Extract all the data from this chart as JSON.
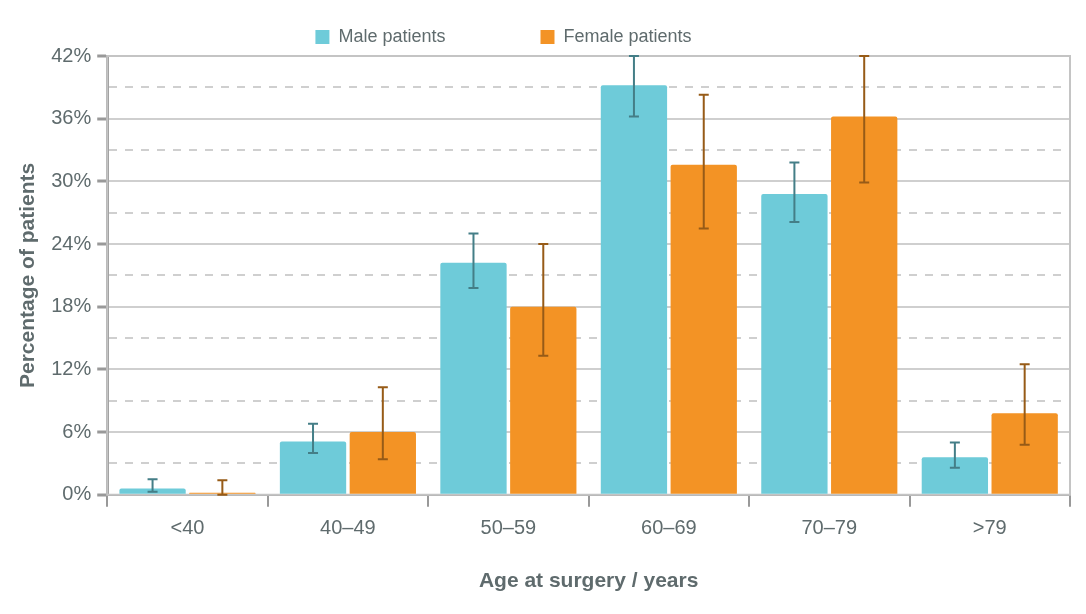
{
  "chart_data": {
    "type": "bar",
    "xlabel": "Age at surgery / years",
    "ylabel": "Percentage of patients",
    "categories": [
      "<40",
      "40–49",
      "50–59",
      "60–69",
      "70–79",
      ">79"
    ],
    "series": [
      {
        "name": "Male patients",
        "color": "#6ecbd9",
        "values": [
          0.6,
          5.1,
          22.2,
          39.2,
          28.8,
          3.6
        ],
        "errors": [
          [
            0.3,
            1.5
          ],
          [
            4.0,
            6.8
          ],
          [
            19.8,
            25.0
          ],
          [
            36.2,
            42
          ],
          [
            26.1,
            31.8
          ],
          [
            2.6,
            5.0
          ]
        ]
      },
      {
        "name": "Female patients",
        "color": "#f39325",
        "values": [
          0,
          6.0,
          18.0,
          31.6,
          36.2,
          7.8
        ],
        "errors": [
          [
            0,
            1.4
          ],
          [
            3.4,
            10.3
          ],
          [
            13.3,
            24.0
          ],
          [
            25.5,
            38.3
          ],
          [
            29.9,
            42
          ],
          [
            4.8,
            12.5
          ]
        ]
      }
    ],
    "ylim": [
      0,
      42
    ],
    "yticks": [
      {
        "value": 0,
        "label": "0%"
      },
      {
        "value": 3,
        "label": null
      },
      {
        "value": 6,
        "label": "6%"
      },
      {
        "value": 9,
        "label": null
      },
      {
        "value": 12,
        "label": "12%"
      },
      {
        "value": 15,
        "label": null
      },
      {
        "value": 18,
        "label": "18%"
      },
      {
        "value": 21,
        "label": null
      },
      {
        "value": 24,
        "label": "24%"
      },
      {
        "value": 27,
        "label": null
      },
      {
        "value": 30,
        "label": "30%"
      },
      {
        "value": 33,
        "label": null
      },
      {
        "value": 36,
        "label": "36%"
      },
      {
        "value": 39,
        "label": null
      },
      {
        "value": 42,
        "label": "42%"
      }
    ],
    "grid": "y",
    "legend": "top"
  }
}
